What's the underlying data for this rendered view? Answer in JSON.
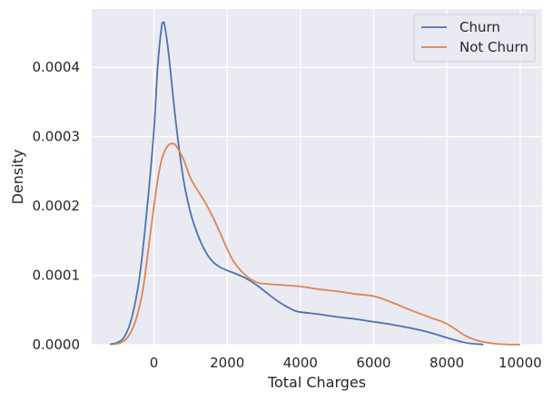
{
  "chart_data": {
    "type": "line",
    "xlabel": "Total Charges",
    "ylabel": "Density",
    "xlim": [
      -1700,
      10600
    ],
    "ylim": [
      0,
      0.000484
    ],
    "xticks": [
      0,
      2000,
      4000,
      6000,
      8000,
      10000
    ],
    "xtick_labels": [
      "0",
      "2000",
      "4000",
      "6000",
      "8000",
      "10000"
    ],
    "yticks": [
      0,
      0.0001,
      0.0002,
      0.0003,
      0.0004
    ],
    "ytick_labels": [
      "0.0000",
      "0.0001",
      "0.0002",
      "0.0003",
      "0.0004"
    ],
    "grid": true,
    "legend_position": "top-right",
    "background_color": "#eaeaf2",
    "series": [
      {
        "name": "Churn",
        "color": "#4c72b0",
        "x": [
          -1200,
          -1000,
          -800,
          -600,
          -400,
          -200,
          0,
          100,
          200,
          250,
          300,
          400,
          600,
          800,
          1000,
          1200,
          1400,
          1600,
          1800,
          2000,
          2200,
          2500,
          2800,
          3000,
          3400,
          3800,
          4000,
          4500,
          5000,
          5500,
          6000,
          6500,
          7000,
          7500,
          8000,
          8300,
          8600,
          9000
        ],
        "y": [
          5e-07,
          3e-06,
          1.2e-05,
          4e-05,
          9.5e-05,
          0.00019,
          0.00031,
          0.0004,
          0.000455,
          0.000465,
          0.000458,
          0.00042,
          0.00032,
          0.00024,
          0.00019,
          0.000158,
          0.000135,
          0.00012,
          0.000112,
          0.000107,
          0.000103,
          9.6e-05,
          8.6e-05,
          7.8e-05,
          6.2e-05,
          5e-05,
          4.7e-05,
          4.4e-05,
          4e-05,
          3.7e-05,
          3.3e-05,
          2.9e-05,
          2.4e-05,
          1.8e-05,
          1e-05,
          5.5e-06,
          2e-06,
          3e-07
        ]
      },
      {
        "name": "Not Churn",
        "color": "#dd8452",
        "x": [
          -1100,
          -900,
          -700,
          -500,
          -300,
          -100,
          0,
          100,
          200,
          300,
          400,
          500,
          600,
          800,
          1000,
          1200,
          1400,
          1600,
          1800,
          2000,
          2200,
          2500,
          2800,
          3000,
          3500,
          4000,
          4500,
          5000,
          5500,
          6000,
          6500,
          7000,
          7500,
          8000,
          8500,
          8800,
          9000,
          9300,
          9600,
          10000
        ],
        "y": [
          5e-07,
          3e-06,
          1.2e-05,
          3.5e-05,
          8e-05,
          0.00016,
          0.0002,
          0.000237,
          0.000265,
          0.00028,
          0.000288,
          0.00029,
          0.000287,
          0.000268,
          0.00024,
          0.000222,
          0.000205,
          0.000185,
          0.000162,
          0.000138,
          0.000118,
          0.0001,
          9e-05,
          8.8e-05,
          8.6e-05,
          8.4e-05,
          8e-05,
          7.7e-05,
          7.3e-05,
          7e-05,
          6.1e-05,
          5e-05,
          4e-05,
          3e-05,
          1.3e-05,
          6.5e-06,
          4e-06,
          1.5e-06,
          5e-07,
          1e-07
        ]
      }
    ]
  }
}
